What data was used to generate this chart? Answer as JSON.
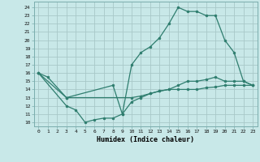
{
  "xlabel": "Humidex (Indice chaleur)",
  "bg_color": "#c8e8e8",
  "grid_color": "#b0d0d0",
  "line_color": "#2e7d6e",
  "xlim": [
    -0.5,
    23.5
  ],
  "ylim": [
    9.5,
    24.7
  ],
  "yticks": [
    10,
    11,
    12,
    13,
    14,
    15,
    16,
    17,
    18,
    19,
    20,
    21,
    22,
    23,
    24
  ],
  "xticks": [
    0,
    1,
    2,
    3,
    4,
    5,
    6,
    7,
    8,
    9,
    10,
    11,
    12,
    13,
    14,
    15,
    16,
    17,
    18,
    19,
    20,
    21,
    22,
    23
  ],
  "series1_x": [
    0,
    1,
    3,
    10,
    11,
    12,
    13,
    14,
    15,
    16,
    17,
    18,
    19,
    20,
    21,
    22,
    23
  ],
  "series1_y": [
    16,
    15.5,
    13,
    13,
    13.2,
    13.5,
    13.8,
    14,
    14,
    14,
    14,
    14.2,
    14.3,
    14.5,
    14.5,
    14.5,
    14.5
  ],
  "series2_x": [
    0,
    3,
    4,
    5,
    6,
    7,
    8,
    9,
    10,
    11,
    12,
    13,
    14,
    15,
    16,
    17,
    18,
    19,
    20,
    21,
    22,
    23
  ],
  "series2_y": [
    16,
    12,
    11.5,
    10,
    10.3,
    10.5,
    10.5,
    11,
    12.5,
    13,
    13.5,
    13.8,
    14,
    14.5,
    15,
    15,
    15.2,
    15.5,
    15,
    15,
    15,
    14.5
  ],
  "series3_x": [
    0,
    3,
    8,
    9,
    10,
    11,
    12,
    13,
    14,
    15,
    16,
    17,
    18,
    19,
    20,
    21,
    22,
    23
  ],
  "series3_y": [
    16,
    13,
    14.5,
    11,
    17,
    18.5,
    19.2,
    20.3,
    22,
    24,
    23.5,
    23.5,
    23,
    23,
    20,
    18.5,
    15,
    14.5
  ]
}
